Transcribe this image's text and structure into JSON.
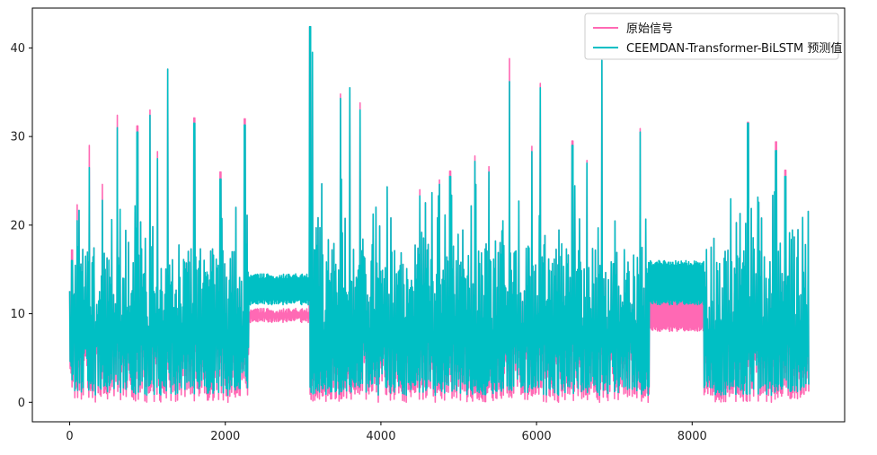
{
  "chart_data": {
    "type": "line",
    "title": "",
    "xlabel": "",
    "ylabel": "",
    "xlim": [
      -480,
      9960
    ],
    "ylim": [
      -2.2,
      44.5
    ],
    "x_ticks": [
      0,
      2000,
      4000,
      6000,
      8000
    ],
    "y_ticks": [
      0,
      10,
      20,
      30,
      40
    ],
    "x_tick_labels": [
      "0",
      "2000",
      "4000",
      "6000",
      "8000"
    ],
    "y_tick_labels": [
      "0",
      "10",
      "20",
      "30",
      "40"
    ],
    "n_points": 9500,
    "grid": false,
    "legend_position": "top-right",
    "series": [
      {
        "name": "原始信号",
        "color": "#ff69b4",
        "stable_segments": [
          {
            "x_start": 2300,
            "x_end": 3080,
            "low": 9.0,
            "high": 10.6
          },
          {
            "x_start": 7450,
            "x_end": 8150,
            "low": 8.0,
            "high": 12.0
          }
        ],
        "peaks": [
          {
            "x": 30,
            "y": 17.2
          },
          {
            "x": 95,
            "y": 22.3
          },
          {
            "x": 250,
            "y": 29.0
          },
          {
            "x": 420,
            "y": 24.6
          },
          {
            "x": 610,
            "y": 32.4
          },
          {
            "x": 870,
            "y": 31.2
          },
          {
            "x": 1030,
            "y": 33.0
          },
          {
            "x": 1130,
            "y": 28.3
          },
          {
            "x": 1260,
            "y": 37.6
          },
          {
            "x": 1600,
            "y": 32.1
          },
          {
            "x": 1940,
            "y": 26.0
          },
          {
            "x": 2250,
            "y": 32.0
          },
          {
            "x": 3090,
            "y": 42.4
          },
          {
            "x": 3120,
            "y": 39.5
          },
          {
            "x": 3480,
            "y": 34.8
          },
          {
            "x": 3600,
            "y": 35.5
          },
          {
            "x": 3730,
            "y": 33.8
          },
          {
            "x": 4500,
            "y": 24.0
          },
          {
            "x": 4750,
            "y": 25.1
          },
          {
            "x": 4890,
            "y": 26.1
          },
          {
            "x": 5210,
            "y": 27.8
          },
          {
            "x": 5390,
            "y": 26.6
          },
          {
            "x": 5650,
            "y": 38.8
          },
          {
            "x": 5940,
            "y": 28.9
          },
          {
            "x": 6050,
            "y": 36.0
          },
          {
            "x": 6460,
            "y": 29.5
          },
          {
            "x": 6650,
            "y": 27.3
          },
          {
            "x": 6840,
            "y": 38.6
          },
          {
            "x": 7330,
            "y": 30.9
          },
          {
            "x": 8720,
            "y": 31.6
          },
          {
            "x": 9080,
            "y": 29.4
          },
          {
            "x": 9200,
            "y": 26.2
          }
        ]
      },
      {
        "name": "CEEMDAN-Transformer-BiLSTM 预测值",
        "color": "#00bfc4",
        "stable_segments": [
          {
            "x_start": 2300,
            "x_end": 3080,
            "low": 11.0,
            "high": 14.5
          },
          {
            "x_start": 7450,
            "x_end": 8150,
            "low": 11.0,
            "high": 16.0
          }
        ],
        "peaks": [
          {
            "x": 30,
            "y": 16.0
          },
          {
            "x": 95,
            "y": 20.5
          },
          {
            "x": 250,
            "y": 26.5
          },
          {
            "x": 420,
            "y": 22.8
          },
          {
            "x": 610,
            "y": 31.0
          },
          {
            "x": 870,
            "y": 30.5
          },
          {
            "x": 1030,
            "y": 32.4
          },
          {
            "x": 1130,
            "y": 27.5
          },
          {
            "x": 1260,
            "y": 37.6
          },
          {
            "x": 1600,
            "y": 31.5
          },
          {
            "x": 1940,
            "y": 25.2
          },
          {
            "x": 2250,
            "y": 31.3
          },
          {
            "x": 3090,
            "y": 42.4
          },
          {
            "x": 3120,
            "y": 39.5
          },
          {
            "x": 3480,
            "y": 34.3
          },
          {
            "x": 3600,
            "y": 35.5
          },
          {
            "x": 3730,
            "y": 33.0
          },
          {
            "x": 4500,
            "y": 23.3
          },
          {
            "x": 4750,
            "y": 24.6
          },
          {
            "x": 4890,
            "y": 25.5
          },
          {
            "x": 5210,
            "y": 27.2
          },
          {
            "x": 5390,
            "y": 26.0
          },
          {
            "x": 5650,
            "y": 36.2
          },
          {
            "x": 5940,
            "y": 28.3
          },
          {
            "x": 6050,
            "y": 35.5
          },
          {
            "x": 6460,
            "y": 29.0
          },
          {
            "x": 6650,
            "y": 27.0
          },
          {
            "x": 6840,
            "y": 38.6
          },
          {
            "x": 7330,
            "y": 30.5
          },
          {
            "x": 8720,
            "y": 31.5
          },
          {
            "x": 9080,
            "y": 28.4
          },
          {
            "x": 9200,
            "y": 25.5
          }
        ]
      }
    ]
  }
}
